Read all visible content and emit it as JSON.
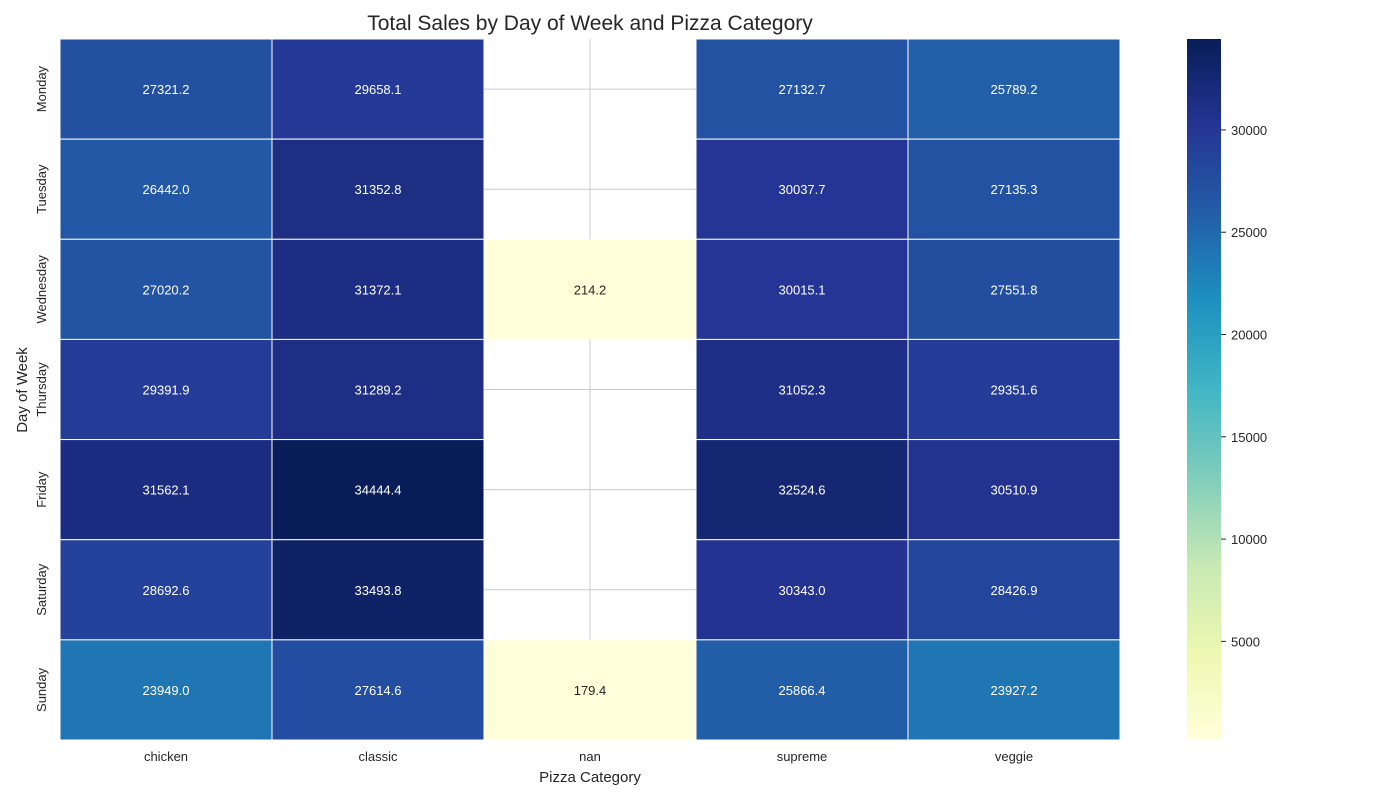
{
  "chart_data": {
    "type": "heatmap",
    "title": "Total Sales by Day of Week and Pizza Category",
    "xlabel": "Pizza Category",
    "ylabel": "Day of Week",
    "x_categories": [
      "chicken",
      "classic",
      "nan",
      "supreme",
      "veggie"
    ],
    "y_categories": [
      "Monday",
      "Tuesday",
      "Wednesday",
      "Thursday",
      "Friday",
      "Saturday",
      "Sunday"
    ],
    "values": [
      [
        27321.2,
        29658.1,
        null,
        27132.7,
        25789.2
      ],
      [
        26442.0,
        31352.8,
        null,
        30037.7,
        27135.3
      ],
      [
        27020.2,
        31372.1,
        214.2,
        30015.1,
        27551.8
      ],
      [
        29391.9,
        31289.2,
        null,
        31052.3,
        29351.6
      ],
      [
        31562.1,
        34444.4,
        null,
        32524.6,
        30510.9
      ],
      [
        28692.6,
        33493.8,
        null,
        30343.0,
        28426.9
      ],
      [
        23949.0,
        27614.6,
        179.4,
        25866.4,
        23927.2
      ]
    ],
    "colormap": "YlGnBu",
    "value_range": [
      179.4,
      34444.4
    ],
    "colorbar_ticks": [
      5000,
      10000,
      15000,
      20000,
      25000,
      30000
    ],
    "grid": true,
    "annotate_format": "0.1f"
  }
}
